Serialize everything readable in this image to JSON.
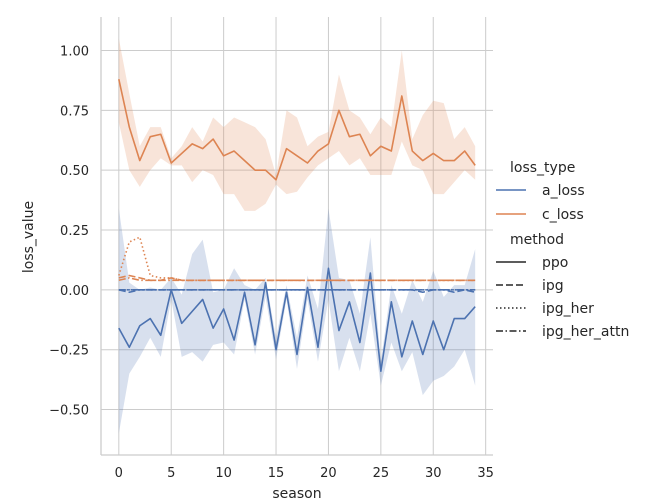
{
  "chart_data": {
    "type": "line",
    "title": "",
    "xlabel": "season",
    "ylabel": "loss_value",
    "xlim": [
      -1.7,
      35.7
    ],
    "ylim": [
      -0.69,
      1.14
    ],
    "x_ticks": [
      0,
      5,
      10,
      15,
      20,
      25,
      30,
      35
    ],
    "y_ticks": [
      -0.5,
      -0.25,
      0.0,
      0.25,
      0.5,
      0.75,
      1.0
    ],
    "x_tick_labels": [
      "0",
      "5",
      "10",
      "15",
      "20",
      "25",
      "30",
      "35"
    ],
    "y_tick_labels": [
      "−0.50",
      "−0.25",
      "0.00",
      "0.25",
      "0.50",
      "0.75",
      "1.00"
    ],
    "grid": true,
    "legend_position": "right",
    "legend": {
      "hue_title": "loss_type",
      "hue_entries": [
        {
          "label": "a_loss",
          "color": "#4c72b0"
        },
        {
          "label": "c_loss",
          "color": "#dd8452"
        }
      ],
      "style_title": "method",
      "style_entries": [
        {
          "label": "ppo",
          "dash": "solid"
        },
        {
          "label": "ipg",
          "dash": "dashed"
        },
        {
          "label": "ipg_her",
          "dash": "dotted"
        },
        {
          "label": "ipg_her_attn",
          "dash": "dashdot"
        }
      ]
    },
    "colors": {
      "a_loss": "#4c72b0",
      "c_loss": "#dd8452",
      "grid": "#cccccc",
      "axis": "#cccccc"
    },
    "series": [
      {
        "loss_type": "c_loss",
        "method": "ppo",
        "dash": "solid",
        "color": "#dd8452",
        "ci": true,
        "x": [
          0,
          1,
          2,
          3,
          4,
          5,
          6,
          7,
          8,
          9,
          10,
          11,
          12,
          13,
          14,
          15,
          16,
          17,
          18,
          19,
          20,
          21,
          22,
          23,
          24,
          25,
          26,
          27,
          28,
          29,
          30,
          31,
          32,
          33,
          34
        ],
        "y": [
          0.88,
          0.68,
          0.54,
          0.64,
          0.65,
          0.53,
          0.57,
          0.61,
          0.59,
          0.63,
          0.56,
          0.58,
          0.54,
          0.5,
          0.5,
          0.46,
          0.59,
          0.56,
          0.53,
          0.58,
          0.61,
          0.75,
          0.64,
          0.65,
          0.56,
          0.6,
          0.58,
          0.81,
          0.58,
          0.54,
          0.57,
          0.54,
          0.54,
          0.58,
          0.52
        ],
        "ci_low": [
          0.7,
          0.5,
          0.43,
          0.5,
          0.55,
          0.52,
          0.52,
          0.45,
          0.5,
          0.48,
          0.4,
          0.4,
          0.33,
          0.33,
          0.36,
          0.44,
          0.4,
          0.41,
          0.47,
          0.52,
          0.55,
          0.58,
          0.52,
          0.55,
          0.48,
          0.48,
          0.48,
          0.62,
          0.52,
          0.5,
          0.4,
          0.4,
          0.45,
          0.5,
          0.46
        ],
        "ci_high": [
          1.05,
          0.82,
          0.6,
          0.68,
          0.68,
          0.55,
          0.6,
          0.68,
          0.62,
          0.72,
          0.68,
          0.72,
          0.7,
          0.68,
          0.63,
          0.48,
          0.75,
          0.72,
          0.6,
          0.64,
          0.66,
          0.9,
          0.75,
          0.72,
          0.65,
          0.72,
          0.68,
          1.0,
          0.63,
          0.73,
          0.79,
          0.78,
          0.63,
          0.68,
          0.6
        ]
      },
      {
        "loss_type": "a_loss",
        "method": "ppo",
        "dash": "solid",
        "color": "#4c72b0",
        "ci": true,
        "x": [
          0,
          1,
          2,
          3,
          4,
          5,
          6,
          7,
          8,
          9,
          10,
          11,
          12,
          13,
          14,
          15,
          16,
          17,
          18,
          19,
          20,
          21,
          22,
          23,
          24,
          25,
          26,
          27,
          28,
          29,
          30,
          31,
          32,
          33,
          34
        ],
        "y": [
          -0.16,
          -0.24,
          -0.15,
          -0.12,
          -0.19,
          -0.0,
          -0.14,
          -0.09,
          -0.04,
          -0.16,
          -0.08,
          -0.21,
          -0.01,
          -0.23,
          0.03,
          -0.25,
          -0.01,
          -0.27,
          0.01,
          -0.24,
          0.09,
          -0.17,
          -0.05,
          -0.22,
          0.07,
          -0.34,
          -0.05,
          -0.28,
          -0.13,
          -0.27,
          -0.13,
          -0.25,
          -0.12,
          -0.12,
          -0.07
        ],
        "ci_low": [
          -0.6,
          -0.35,
          -0.28,
          -0.2,
          -0.28,
          -0.04,
          -0.28,
          -0.26,
          -0.3,
          -0.23,
          -0.22,
          -0.27,
          -0.04,
          -0.27,
          -0.03,
          -0.29,
          -0.04,
          -0.33,
          -0.04,
          -0.3,
          -0.04,
          -0.34,
          -0.2,
          -0.34,
          -0.1,
          -0.4,
          -0.22,
          -0.34,
          -0.26,
          -0.44,
          -0.38,
          -0.36,
          -0.32,
          -0.25,
          -0.4
        ],
        "ci_high": [
          0.34,
          0.03,
          0.0,
          0.01,
          0.0,
          0.05,
          -0.02,
          0.15,
          0.21,
          -0.01,
          0.0,
          0.09,
          0.02,
          0.0,
          0.05,
          -0.2,
          0.02,
          -0.2,
          0.06,
          -0.08,
          0.34,
          0.05,
          0.04,
          -0.1,
          0.22,
          -0.3,
          0.02,
          -0.1,
          0.04,
          -0.05,
          0.08,
          -0.03,
          0.02,
          0.02,
          0.17
        ]
      },
      {
        "loss_type": "c_loss",
        "method": "ipg",
        "dash": "dashed",
        "color": "#dd8452",
        "ci": false,
        "x": [
          0,
          1,
          2,
          3,
          4,
          5,
          6,
          7,
          8,
          9,
          10,
          11,
          12,
          13,
          14,
          15,
          16,
          17,
          18,
          19,
          20,
          21,
          22,
          23,
          24,
          25,
          26,
          27,
          28,
          29,
          30,
          31,
          32,
          33,
          34
        ],
        "y": [
          0.05,
          0.06,
          0.05,
          0.04,
          0.04,
          0.05,
          0.04,
          0.04,
          0.04,
          0.04,
          0.04,
          0.04,
          0.04,
          0.04,
          0.04,
          0.04,
          0.04,
          0.04,
          0.04,
          0.04,
          0.04,
          0.04,
          0.04,
          0.04,
          0.04,
          0.04,
          0.04,
          0.04,
          0.04,
          0.04,
          0.04,
          0.04,
          0.04,
          0.04,
          0.04
        ]
      },
      {
        "loss_type": "c_loss",
        "method": "ipg_her",
        "dash": "dotted",
        "color": "#dd8452",
        "ci": false,
        "x": [
          0,
          1,
          2,
          3,
          4,
          5,
          6,
          7,
          8,
          9,
          10,
          11,
          12,
          13,
          14,
          15,
          16,
          17,
          18,
          19,
          20,
          21,
          22,
          23,
          24,
          25,
          26,
          27,
          28,
          29,
          30,
          31,
          32,
          33,
          34
        ],
        "y": [
          0.06,
          0.2,
          0.22,
          0.06,
          0.05,
          0.05,
          0.04,
          0.04,
          0.04,
          0.04,
          0.04,
          0.04,
          0.04,
          0.04,
          0.04,
          0.04,
          0.04,
          0.04,
          0.04,
          0.04,
          0.04,
          0.04,
          0.04,
          0.04,
          0.04,
          0.04,
          0.04,
          0.04,
          0.04,
          0.04,
          0.04,
          0.04,
          0.04,
          0.04,
          0.04
        ]
      },
      {
        "loss_type": "c_loss",
        "method": "ipg_her_attn",
        "dash": "dashdot",
        "color": "#dd8452",
        "ci": false,
        "x": [
          0,
          1,
          2,
          3,
          4,
          5,
          6,
          7,
          8,
          9,
          10,
          11,
          12,
          13,
          14,
          15,
          16,
          17,
          18,
          19,
          20,
          21,
          22,
          23,
          24,
          25,
          26,
          27,
          28,
          29,
          30,
          31,
          32,
          33,
          34
        ],
        "y": [
          0.04,
          0.05,
          0.04,
          0.04,
          0.04,
          0.04,
          0.04,
          0.04,
          0.04,
          0.04,
          0.04,
          0.04,
          0.04,
          0.04,
          0.04,
          0.04,
          0.04,
          0.04,
          0.04,
          0.04,
          0.04,
          0.04,
          0.04,
          0.04,
          0.04,
          0.04,
          0.04,
          0.04,
          0.04,
          0.04,
          0.04,
          0.04,
          0.04,
          0.04,
          0.04
        ]
      },
      {
        "loss_type": "a_loss",
        "method": "ipg",
        "dash": "dashed",
        "color": "#4c72b0",
        "ci": false,
        "x": [
          0,
          1,
          2,
          3,
          4,
          5,
          6,
          7,
          8,
          9,
          10,
          11,
          12,
          13,
          14,
          15,
          16,
          17,
          18,
          19,
          20,
          21,
          22,
          23,
          24,
          25,
          26,
          27,
          28,
          29,
          30,
          31,
          32,
          33,
          34
        ],
        "y": [
          0.0,
          -0.01,
          0.0,
          0.0,
          0.0,
          0.0,
          0.0,
          0.0,
          0.0,
          0.0,
          0.0,
          0.0,
          0.0,
          0.0,
          0.0,
          0.0,
          0.0,
          0.0,
          0.0,
          0.0,
          0.0,
          0.0,
          0.0,
          0.0,
          0.0,
          0.0,
          0.0,
          0.0,
          0.0,
          -0.01,
          0.0,
          0.0,
          -0.01,
          0.0,
          -0.01
        ]
      },
      {
        "loss_type": "a_loss",
        "method": "ipg_her",
        "dash": "dotted",
        "color": "#4c72b0",
        "ci": false,
        "x": [
          0,
          1,
          2,
          3,
          4,
          5,
          6,
          7,
          8,
          9,
          10,
          11,
          12,
          13,
          14,
          15,
          16,
          17,
          18,
          19,
          20,
          21,
          22,
          23,
          24,
          25,
          26,
          27,
          28,
          29,
          30,
          31,
          32,
          33,
          34
        ],
        "y": [
          0.0,
          0.0,
          0.0,
          0.0,
          0.0,
          0.0,
          0.0,
          0.0,
          0.0,
          0.0,
          0.0,
          0.0,
          0.0,
          0.0,
          0.0,
          0.0,
          0.0,
          0.0,
          0.0,
          0.0,
          0.0,
          0.0,
          0.0,
          0.0,
          0.0,
          0.0,
          0.0,
          0.0,
          0.0,
          0.0,
          0.0,
          0.0,
          0.0,
          0.0,
          0.0
        ]
      },
      {
        "loss_type": "a_loss",
        "method": "ipg_her_attn",
        "dash": "dashdot",
        "color": "#4c72b0",
        "ci": false,
        "x": [
          0,
          1,
          2,
          3,
          4,
          5,
          6,
          7,
          8,
          9,
          10,
          11,
          12,
          13,
          14,
          15,
          16,
          17,
          18,
          19,
          20,
          21,
          22,
          23,
          24,
          25,
          26,
          27,
          28,
          29,
          30,
          31,
          32,
          33,
          34
        ],
        "y": [
          0.0,
          0.0,
          0.0,
          0.0,
          0.0,
          0.0,
          0.0,
          0.0,
          0.0,
          0.0,
          0.0,
          0.0,
          0.0,
          0.0,
          0.0,
          0.0,
          0.0,
          0.0,
          0.0,
          0.0,
          0.0,
          0.0,
          0.0,
          0.0,
          0.0,
          0.0,
          0.0,
          0.0,
          0.0,
          0.0,
          0.0,
          0.0,
          0.0,
          0.0,
          0.0
        ]
      }
    ]
  }
}
